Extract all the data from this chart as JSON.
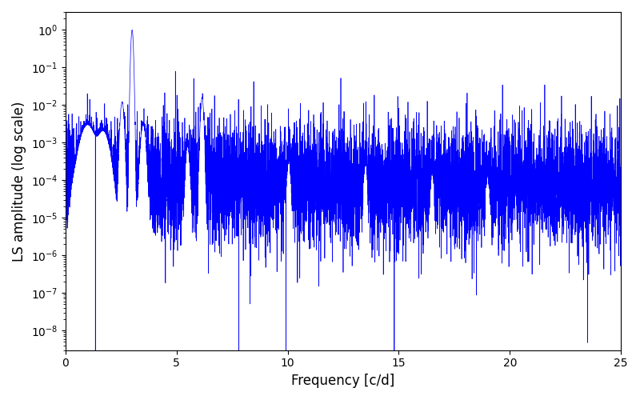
{
  "xlabel": "Frequency [c/d]",
  "ylabel": "LS amplitude (log scale)",
  "xlim": [
    0,
    25
  ],
  "ylim_bottom": 3e-09,
  "ylim_top": 3.0,
  "line_color": "#0000ff",
  "line_width": 0.5,
  "freq_min": 0.0,
  "freq_max": 25.0,
  "n_points": 8000,
  "seed": 7,
  "figsize": [
    8.0,
    5.0
  ],
  "dpi": 100
}
